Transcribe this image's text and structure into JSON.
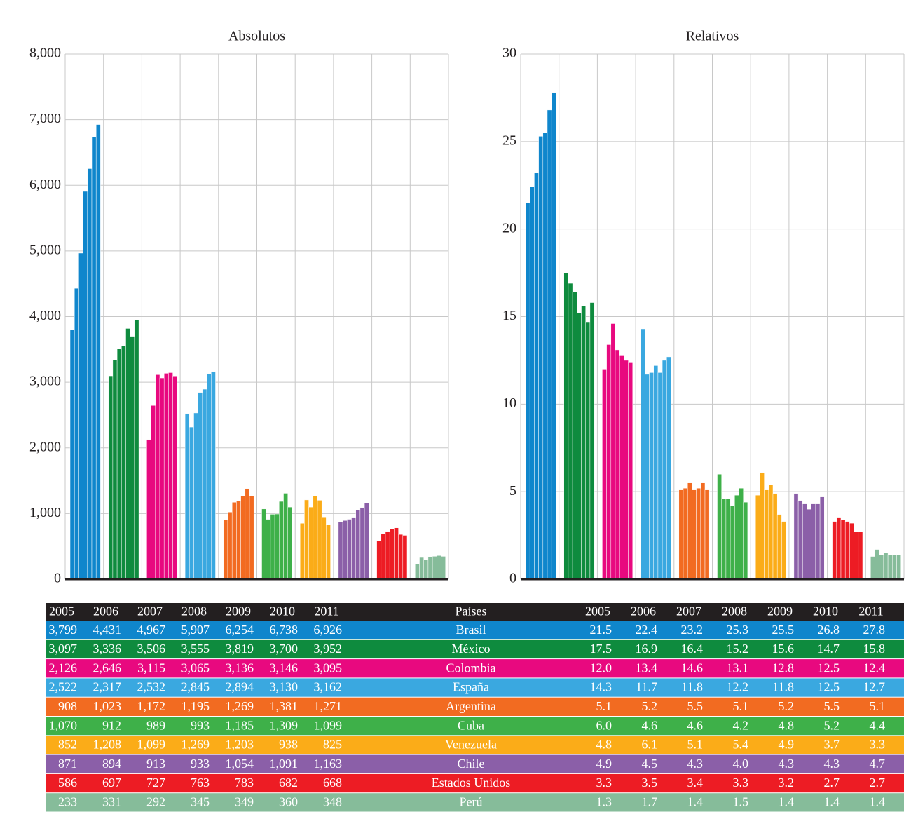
{
  "chart_data": [
    {
      "type": "bar",
      "title": "Absolutos",
      "categories": [
        "2005",
        "2006",
        "2007",
        "2008",
        "2009",
        "2010",
        "2011"
      ],
      "ylim": [
        0,
        8000
      ],
      "yticks": [
        0,
        {
          "value": 1000,
          "label": "1,000"
        },
        {
          "value": 2000,
          "label": "2,000"
        },
        {
          "value": 3000,
          "label": "3,000"
        },
        {
          "value": 4000,
          "label": "4,000"
        },
        {
          "value": 5000,
          "label": "5,000"
        },
        {
          "value": 6000,
          "label": "6,000"
        },
        {
          "value": 7000,
          "label": "7,000"
        },
        {
          "value": 8000,
          "label": "8,000"
        }
      ],
      "grid": true,
      "series": [
        {
          "name": "Brasil",
          "color": "#0f86cc",
          "values": [
            3799,
            4431,
            4967,
            5907,
            6254,
            6738,
            6926
          ],
          "value_labels": [
            "3,799",
            "4,431",
            "4,967",
            "5,907",
            "6,254",
            "6,738",
            "6,926"
          ]
        },
        {
          "name": "México",
          "color": "#0e8b3e",
          "values": [
            3097,
            3336,
            3506,
            3555,
            3819,
            3700,
            3952
          ],
          "value_labels": [
            "3,097",
            "3,336",
            "3,506",
            "3,555",
            "3,819",
            "3,700",
            "3,952"
          ]
        },
        {
          "name": "Colombia",
          "color": "#e8097f",
          "values": [
            2126,
            2646,
            3115,
            3065,
            3136,
            3146,
            3095
          ],
          "value_labels": [
            "2,126",
            "2,646",
            "3,115",
            "3,065",
            "3,136",
            "3,146",
            "3,095"
          ]
        },
        {
          "name": "España",
          "color": "#3aa8e0",
          "values": [
            2522,
            2317,
            2532,
            2845,
            2894,
            3130,
            3162
          ],
          "value_labels": [
            "2,522",
            "2,317",
            "2,532",
            "2,845",
            "2,894",
            "3,130",
            "3,162"
          ]
        },
        {
          "name": "Argentina",
          "color": "#f26b21",
          "values": [
            908,
            1023,
            1172,
            1195,
            1269,
            1381,
            1271
          ],
          "value_labels": [
            "908",
            "1,023",
            "1,172",
            "1,195",
            "1,269",
            "1,381",
            "1,271"
          ]
        },
        {
          "name": "Cuba",
          "color": "#3eb049",
          "values": [
            1070,
            912,
            989,
            993,
            1185,
            1309,
            1099
          ],
          "value_labels": [
            "1,070",
            "912",
            "989",
            "993",
            "1,185",
            "1,309",
            "1,099"
          ]
        },
        {
          "name": "Venezuela",
          "color": "#fbac18",
          "values": [
            852,
            1208,
            1099,
            1269,
            1203,
            938,
            825
          ],
          "value_labels": [
            "852",
            "1,208",
            "1,099",
            "1,269",
            "1,203",
            "938",
            "825"
          ]
        },
        {
          "name": "Chile",
          "color": "#8b5fa8",
          "values": [
            871,
            894,
            913,
            933,
            1054,
            1091,
            1163
          ],
          "value_labels": [
            "871",
            "894",
            "913",
            "933",
            "1,054",
            "1,091",
            "1,163"
          ]
        },
        {
          "name": "Estados Unidos",
          "color": "#ed1c24",
          "values": [
            586,
            697,
            727,
            763,
            783,
            682,
            668
          ],
          "value_labels": [
            "586",
            "697",
            "727",
            "763",
            "783",
            "682",
            "668"
          ]
        },
        {
          "name": "Perú",
          "color": "#86bc9a",
          "values": [
            233,
            331,
            292,
            345,
            349,
            360,
            348
          ],
          "value_labels": [
            "233",
            "331",
            "292",
            "345",
            "349",
            "360",
            "348"
          ]
        }
      ]
    },
    {
      "type": "bar",
      "title": "Relativos",
      "categories": [
        "2005",
        "2006",
        "2007",
        "2008",
        "2009",
        "2010",
        "2011"
      ],
      "ylim": [
        0,
        30
      ],
      "yticks": [
        0,
        5,
        10,
        15,
        20,
        25,
        30
      ],
      "grid": true,
      "series": [
        {
          "color": "#0f86cc",
          "values": [
            21.5,
            22.4,
            23.2,
            25.3,
            25.5,
            26.8,
            27.8
          ],
          "value_labels": [
            "21.5",
            "22.4",
            "23.2",
            "25.3",
            "25.5",
            "26.8",
            "27.8"
          ]
        },
        {
          "color": "#0e8b3e",
          "values": [
            17.5,
            16.9,
            16.4,
            15.2,
            15.6,
            14.7,
            15.8
          ],
          "value_labels": [
            "17.5",
            "16.9",
            "16.4",
            "15.2",
            "15.6",
            "14.7",
            "15.8"
          ]
        },
        {
          "color": "#e8097f",
          "values": [
            12,
            13.4,
            14.6,
            13.1,
            12.8,
            12.5,
            12.4
          ],
          "value_labels": [
            "12.0",
            "13.4",
            "14.6",
            "13.1",
            "12.8",
            "12.5",
            "12.4"
          ]
        },
        {
          "color": "#3aa8e0",
          "values": [
            14.3,
            11.7,
            11.8,
            12.2,
            11.8,
            12.5,
            12.7
          ],
          "value_labels": [
            "14.3",
            "11.7",
            "11.8",
            "12.2",
            "11.8",
            "12.5",
            "12.7"
          ]
        },
        {
          "color": "#f26b21",
          "values": [
            5.1,
            5.2,
            5.5,
            5.1,
            5.2,
            5.5,
            5.1
          ],
          "value_labels": [
            "5.1",
            "5.2",
            "5.5",
            "5.1",
            "5.2",
            "5.5",
            "5.1"
          ]
        },
        {
          "color": "#3eb049",
          "values": [
            6,
            4.6,
            4.6,
            4.2,
            4.8,
            5.2,
            4.4
          ],
          "value_labels": [
            "6.0",
            "4.6",
            "4.6",
            "4.2",
            "4.8",
            "5.2",
            "4.4"
          ]
        },
        {
          "color": "#fbac18",
          "values": [
            4.8,
            6.1,
            5.1,
            5.4,
            4.9,
            3.7,
            3.3
          ],
          "value_labels": [
            "4.8",
            "6.1",
            "5.1",
            "5.4",
            "4.9",
            "3.7",
            "3.3"
          ]
        },
        {
          "color": "#8b5fa8",
          "values": [
            4.9,
            4.5,
            4.3,
            4,
            4.3,
            4.3,
            4.7
          ],
          "value_labels": [
            "4.9",
            "4.5",
            "4.3",
            "4.0",
            "4.3",
            "4.3",
            "4.7"
          ]
        },
        {
          "color": "#ed1c24",
          "values": [
            3.3,
            3.5,
            3.4,
            3.3,
            3.2,
            2.7,
            2.7
          ],
          "value_labels": [
            "3.3",
            "3.5",
            "3.4",
            "3.3",
            "3.2",
            "2.7",
            "2.7"
          ]
        },
        {
          "color": "#86bc9a",
          "values": [
            1.3,
            1.7,
            1.4,
            1.5,
            1.4,
            1.4,
            1.4
          ],
          "value_labels": [
            "1.3",
            "1.7",
            "1.4",
            "1.5",
            "1.4",
            "1.4",
            "1.4"
          ]
        }
      ]
    }
  ],
  "table": {
    "country_header": "Países"
  }
}
